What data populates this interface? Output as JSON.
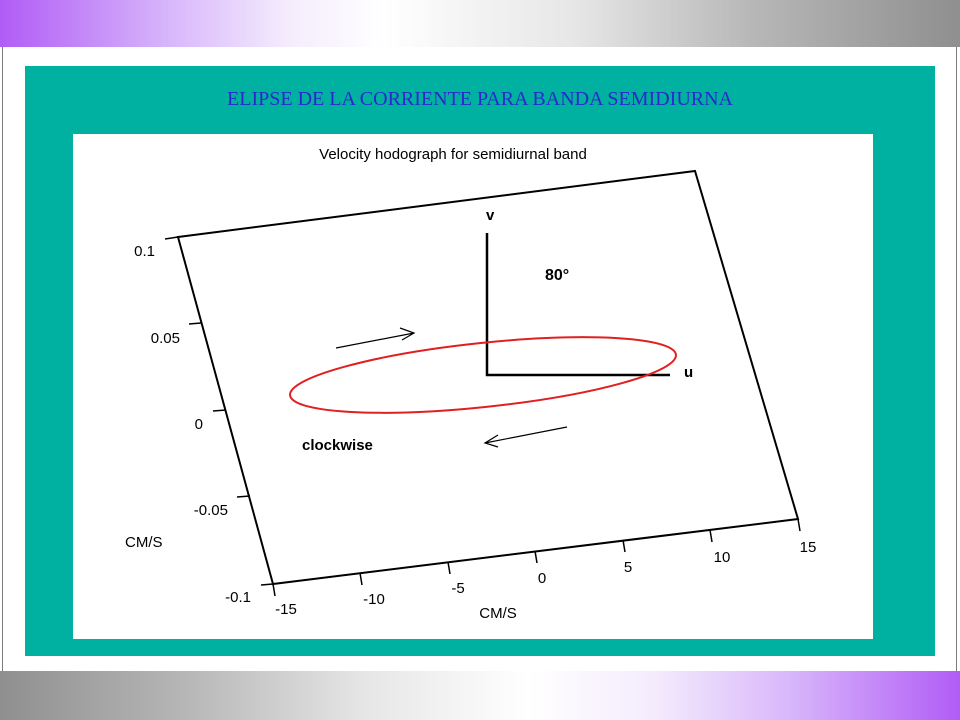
{
  "slide": {
    "title": "ELIPSE DE  LA CORRIENTE PARA BANDA SEMIDIURNA"
  },
  "figure": {
    "heading": "Velocity hodograph for semidiurnal band",
    "y_axis_label": "CM/S",
    "x_axis_label": "CM/S",
    "y_ticks": [
      "0.1",
      "0.05",
      "0",
      "-0.05",
      "-0.1"
    ],
    "x_ticks": [
      "-15",
      "-10",
      "-5",
      "0",
      "5",
      "10",
      "15"
    ],
    "v_label": "v",
    "u_label": "u",
    "angle_label": "80°",
    "rotation_label": "clockwise"
  },
  "colors": {
    "teal": "#00b0a0",
    "title": "#2a2acc",
    "ellipse": "#e02020"
  }
}
